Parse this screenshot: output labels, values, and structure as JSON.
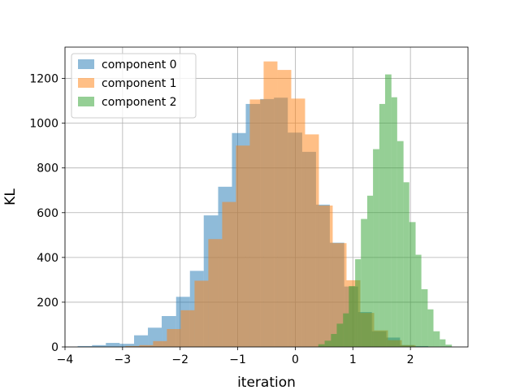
{
  "chart_data": {
    "type": "histogram",
    "xlabel": "iteration",
    "ylabel": "KL",
    "xlim": [
      -4.0,
      3.0
    ],
    "ylim": [
      0,
      1340
    ],
    "xticks": [
      -4,
      -3,
      -2,
      -1,
      0,
      1,
      2
    ],
    "yticks": [
      0,
      200,
      400,
      600,
      800,
      1000,
      1200
    ],
    "grid": true,
    "legend_position": "top-left",
    "bar_alpha": 0.5,
    "series": [
      {
        "name": "component 0",
        "color": "#1f77b4",
        "bins": [
          {
            "x0": -3.78,
            "x1": -3.53,
            "count": 4
          },
          {
            "x0": -3.53,
            "x1": -3.29,
            "count": 8
          },
          {
            "x0": -3.29,
            "x1": -3.05,
            "count": 18
          },
          {
            "x0": -3.05,
            "x1": -2.8,
            "count": 14
          },
          {
            "x0": -2.8,
            "x1": -2.56,
            "count": 52
          },
          {
            "x0": -2.56,
            "x1": -2.32,
            "count": 86
          },
          {
            "x0": -2.32,
            "x1": -2.07,
            "count": 138
          },
          {
            "x0": -2.07,
            "x1": -1.83,
            "count": 224
          },
          {
            "x0": -1.83,
            "x1": -1.59,
            "count": 340
          },
          {
            "x0": -1.59,
            "x1": -1.34,
            "count": 588
          },
          {
            "x0": -1.34,
            "x1": -1.1,
            "count": 716
          },
          {
            "x0": -1.1,
            "x1": -0.86,
            "count": 956
          },
          {
            "x0": -0.86,
            "x1": -0.61,
            "count": 1086
          },
          {
            "x0": -0.61,
            "x1": -0.37,
            "count": 1108
          },
          {
            "x0": -0.37,
            "x1": -0.13,
            "count": 1114
          },
          {
            "x0": -0.13,
            "x1": 0.12,
            "count": 958
          },
          {
            "x0": 0.12,
            "x1": 0.36,
            "count": 872
          },
          {
            "x0": 0.36,
            "x1": 0.6,
            "count": 636
          },
          {
            "x0": 0.6,
            "x1": 0.85,
            "count": 466
          },
          {
            "x0": 0.85,
            "x1": 1.09,
            "count": 270
          },
          {
            "x0": 1.09,
            "x1": 1.33,
            "count": 156
          },
          {
            "x0": 1.33,
            "x1": 1.58,
            "count": 70
          },
          {
            "x0": 1.58,
            "x1": 1.82,
            "count": 42
          },
          {
            "x0": 1.82,
            "x1": 2.06,
            "count": 8
          },
          {
            "x0": 2.06,
            "x1": 2.31,
            "count": 4
          }
        ]
      },
      {
        "name": "component 1",
        "color": "#ff7f0e",
        "bins": [
          {
            "x0": -2.95,
            "x1": -2.71,
            "count": 4
          },
          {
            "x0": -2.71,
            "x1": -2.47,
            "count": 8
          },
          {
            "x0": -2.47,
            "x1": -2.23,
            "count": 26
          },
          {
            "x0": -2.23,
            "x1": -1.99,
            "count": 80
          },
          {
            "x0": -1.99,
            "x1": -1.75,
            "count": 164
          },
          {
            "x0": -1.75,
            "x1": -1.51,
            "count": 296
          },
          {
            "x0": -1.51,
            "x1": -1.27,
            "count": 482
          },
          {
            "x0": -1.27,
            "x1": -1.03,
            "count": 648
          },
          {
            "x0": -1.03,
            "x1": -0.79,
            "count": 900
          },
          {
            "x0": -0.79,
            "x1": -0.55,
            "count": 1106
          },
          {
            "x0": -0.55,
            "x1": -0.31,
            "count": 1276
          },
          {
            "x0": -0.31,
            "x1": -0.07,
            "count": 1238
          },
          {
            "x0": -0.07,
            "x1": 0.17,
            "count": 1110
          },
          {
            "x0": 0.17,
            "x1": 0.41,
            "count": 950
          },
          {
            "x0": 0.41,
            "x1": 0.65,
            "count": 632
          },
          {
            "x0": 0.65,
            "x1": 0.89,
            "count": 464
          },
          {
            "x0": 0.89,
            "x1": 1.13,
            "count": 298
          },
          {
            "x0": 1.13,
            "x1": 1.37,
            "count": 152
          },
          {
            "x0": 1.37,
            "x1": 1.61,
            "count": 74
          },
          {
            "x0": 1.61,
            "x1": 1.85,
            "count": 30
          },
          {
            "x0": 1.85,
            "x1": 2.09,
            "count": 8
          }
        ]
      },
      {
        "name": "component 2",
        "color": "#2ca02c",
        "bins": [
          {
            "x0": 0.4,
            "x1": 0.51,
            "count": 12
          },
          {
            "x0": 0.51,
            "x1": 0.62,
            "count": 28
          },
          {
            "x0": 0.62,
            "x1": 0.72,
            "count": 58
          },
          {
            "x0": 0.72,
            "x1": 0.83,
            "count": 104
          },
          {
            "x0": 0.83,
            "x1": 0.93,
            "count": 150
          },
          {
            "x0": 0.93,
            "x1": 1.04,
            "count": 272
          },
          {
            "x0": 1.04,
            "x1": 1.14,
            "count": 392
          },
          {
            "x0": 1.14,
            "x1": 1.25,
            "count": 572
          },
          {
            "x0": 1.25,
            "x1": 1.35,
            "count": 676
          },
          {
            "x0": 1.35,
            "x1": 1.46,
            "count": 884
          },
          {
            "x0": 1.46,
            "x1": 1.56,
            "count": 1086
          },
          {
            "x0": 1.56,
            "x1": 1.67,
            "count": 1218
          },
          {
            "x0": 1.67,
            "x1": 1.77,
            "count": 1116
          },
          {
            "x0": 1.77,
            "x1": 1.88,
            "count": 920
          },
          {
            "x0": 1.88,
            "x1": 1.98,
            "count": 736
          },
          {
            "x0": 1.98,
            "x1": 2.09,
            "count": 558
          },
          {
            "x0": 2.09,
            "x1": 2.19,
            "count": 412
          },
          {
            "x0": 2.19,
            "x1": 2.3,
            "count": 258
          },
          {
            "x0": 2.3,
            "x1": 2.4,
            "count": 168
          },
          {
            "x0": 2.4,
            "x1": 2.51,
            "count": 70
          },
          {
            "x0": 2.51,
            "x1": 2.61,
            "count": 34
          },
          {
            "x0": 2.61,
            "x1": 2.72,
            "count": 10
          }
        ]
      }
    ]
  }
}
